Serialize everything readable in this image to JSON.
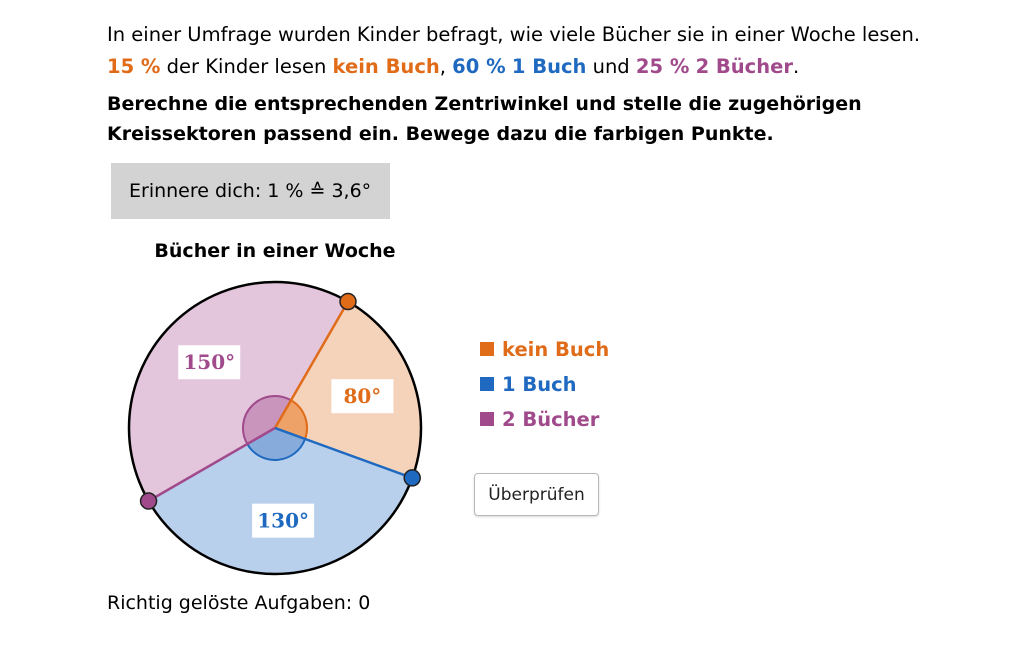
{
  "intro": {
    "line1": "In einer Umfrage wurden Kinder befragt, wie viele Bücher sie in einer Woche lesen.",
    "p1": "15 %",
    "t1": " der Kinder lesen ",
    "c1": "kein Buch",
    "t2": ", ",
    "p2": "60 %",
    "t3": " ",
    "c2": "1 Buch",
    "t4": " und ",
    "p3": "25 %",
    "t5": " ",
    "c3": "2 Bücher",
    "t6": "."
  },
  "task": {
    "line1": "Berechne die entsprechenden Zentriwinkel und stelle die zugehörigen",
    "line2": "Kreissektoren passend ein. Bewege dazu die farbigen Punkte."
  },
  "hint": "Erinnere dich: 1 % ≙ 3,6°",
  "chart_data": {
    "type": "pie",
    "title": "Bücher in einer Woche",
    "unit": "°",
    "start_angle_deg": 60,
    "direction": "clockwise",
    "slices": [
      {
        "name": "kein Buch",
        "value": 80,
        "label": "80°",
        "fill": "#f5d3bb",
        "stroke": "#e06c1a",
        "angle_fill": "#eea268"
      },
      {
        "name": "1 Buch",
        "value": 130,
        "label": "130°",
        "fill": "#b9d0ed",
        "stroke": "#1f6ac0",
        "angle_fill": "#87acdc"
      },
      {
        "name": "2 Bücher",
        "value": 150,
        "label": "150°",
        "fill": "#e3c5dc",
        "stroke": "#a04a8c",
        "angle_fill": "#c995bd"
      }
    ]
  },
  "legend": [
    "kein Buch",
    "1 Buch",
    "2 Bücher"
  ],
  "colors": {
    "orange": "#e06c1a",
    "blue": "#1f6ac0",
    "purple": "#a04a8c"
  },
  "button_label": "Überprüfen",
  "score": {
    "label": "Richtig gelöste Aufgaben:",
    "value": "0"
  }
}
